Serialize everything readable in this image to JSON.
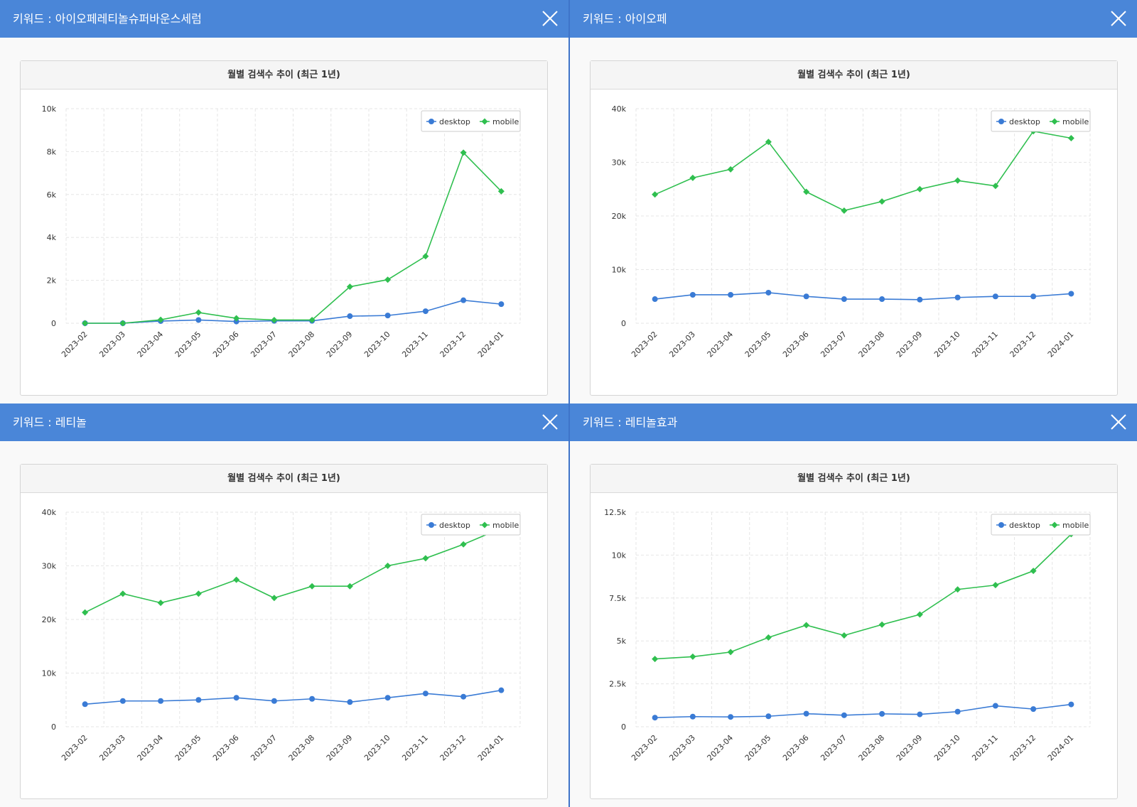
{
  "panels": [
    {
      "title": "키워드 : 아이오페레티놀슈퍼바운스세럼",
      "chart_title": "월별 검색수 추이 (최근 1년)"
    },
    {
      "title": "키워드 : 아이오페",
      "chart_title": "월별 검색수 추이 (최근 1년)"
    },
    {
      "title": "키워드 : 레티놀",
      "chart_title": "월별 검색수 추이 (최근 1년)"
    },
    {
      "title": "키워드 : 레티놀효과",
      "chart_title": "월별 검색수 추이 (최근 1년)"
    }
  ],
  "colors": {
    "header": "#4a86d8",
    "desktop": "#3a7bd5",
    "mobile": "#2fbf4f"
  },
  "chart_data": [
    {
      "type": "line",
      "title": "월별 검색수 추이 (최근 1년)",
      "categories": [
        "2023-02",
        "2023-03",
        "2023-04",
        "2023-05",
        "2023-06",
        "2023-07",
        "2023-08",
        "2023-09",
        "2023-10",
        "2023-11",
        "2023-12",
        "2024-01"
      ],
      "series": [
        {
          "name": "desktop",
          "values": [
            0,
            0,
            100,
            150,
            80,
            110,
            110,
            330,
            360,
            560,
            1070,
            890
          ]
        },
        {
          "name": "mobile",
          "values": [
            0,
            0,
            160,
            500,
            230,
            150,
            150,
            1700,
            2030,
            3120,
            7950,
            6150
          ]
        }
      ],
      "ylim": [
        0,
        10000
      ],
      "yticks": [
        0,
        2000,
        4000,
        6000,
        8000,
        10000
      ],
      "ytick_labels": [
        "0",
        "2k",
        "4k",
        "6k",
        "8k",
        "10k"
      ],
      "legend": "top-right",
      "grid": true
    },
    {
      "type": "line",
      "title": "월별 검색수 추이 (최근 1년)",
      "categories": [
        "2023-02",
        "2023-03",
        "2023-04",
        "2023-05",
        "2023-06",
        "2023-07",
        "2023-08",
        "2023-09",
        "2023-10",
        "2023-11",
        "2023-12",
        "2024-01"
      ],
      "series": [
        {
          "name": "desktop",
          "values": [
            4500,
            5300,
            5300,
            5700,
            5000,
            4500,
            4500,
            4400,
            4800,
            5000,
            5000,
            5500
          ]
        },
        {
          "name": "mobile",
          "values": [
            24000,
            27100,
            28700,
            33800,
            24500,
            21000,
            22700,
            25000,
            26600,
            25600,
            35800,
            34500
          ]
        }
      ],
      "ylim": [
        0,
        40000
      ],
      "yticks": [
        0,
        10000,
        20000,
        30000,
        40000
      ],
      "ytick_labels": [
        "0",
        "10k",
        "20k",
        "30k",
        "40k"
      ],
      "legend": "top-right",
      "grid": true
    },
    {
      "type": "line",
      "title": "월별 검색수 추이 (최근 1년)",
      "categories": [
        "2023-02",
        "2023-03",
        "2023-04",
        "2023-05",
        "2023-06",
        "2023-07",
        "2023-08",
        "2023-09",
        "2023-10",
        "2023-11",
        "2023-12",
        "2024-01"
      ],
      "series": [
        {
          "name": "desktop",
          "values": [
            4200,
            4800,
            4800,
            5000,
            5400,
            4800,
            5200,
            4600,
            5400,
            6200,
            5600,
            6800
          ]
        },
        {
          "name": "mobile",
          "values": [
            21300,
            24800,
            23100,
            24800,
            27400,
            24000,
            26200,
            26200,
            30000,
            31400,
            34000,
            37000
          ]
        }
      ],
      "ylim": [
        0,
        40000
      ],
      "yticks": [
        0,
        10000,
        20000,
        30000,
        40000
      ],
      "ytick_labels": [
        "0",
        "10k",
        "20k",
        "30k",
        "40k"
      ],
      "legend": "top-right",
      "grid": true
    },
    {
      "type": "line",
      "title": "월별 검색수 추이 (최근 1년)",
      "categories": [
        "2023-02",
        "2023-03",
        "2023-04",
        "2023-05",
        "2023-06",
        "2023-07",
        "2023-08",
        "2023-09",
        "2023-10",
        "2023-11",
        "2023-12",
        "2024-01"
      ],
      "series": [
        {
          "name": "desktop",
          "values": [
            530,
            590,
            570,
            610,
            760,
            670,
            750,
            720,
            880,
            1220,
            1030,
            1300
          ]
        },
        {
          "name": "mobile",
          "values": [
            3950,
            4080,
            4350,
            5200,
            5920,
            5320,
            5950,
            6540,
            8000,
            8250,
            9080,
            11220
          ]
        }
      ],
      "ylim": [
        0,
        12500
      ],
      "yticks": [
        0,
        2500,
        5000,
        7500,
        10000,
        12500
      ],
      "ytick_labels": [
        "0",
        "2.5k",
        "5k",
        "7.5k",
        "10k",
        "12.5k"
      ],
      "legend": "top-right",
      "grid": true
    }
  ]
}
